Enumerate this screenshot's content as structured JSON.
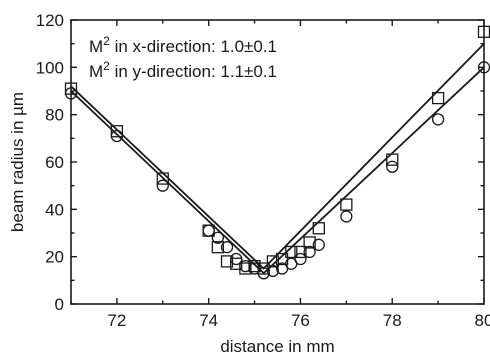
{
  "chart_data": {
    "type": "scatter",
    "xlabel": "distance in mm",
    "ylabel": "beam radius in µm",
    "xlim": [
      71,
      80
    ],
    "ylim": [
      0,
      120
    ],
    "x_ticks": [
      72,
      74,
      76,
      78,
      80
    ],
    "y_ticks": [
      0,
      20,
      40,
      60,
      80,
      100,
      120
    ],
    "grid": false,
    "annotations": [
      {
        "prefix": "M",
        "superscript": "2",
        "text": " in x-direction: 1.0±0.1"
      },
      {
        "prefix": "M",
        "superscript": "2",
        "text": " in y-direction: 1.1±0.1"
      }
    ],
    "series": [
      {
        "marker": "square",
        "x": [
          71,
          72,
          73,
          74,
          74.2,
          74.4,
          74.6,
          74.8,
          75,
          75.2,
          75.4,
          75.6,
          75.8,
          76,
          76.2,
          76.4,
          77,
          78,
          79,
          80
        ],
        "y": [
          91,
          73,
          53,
          31,
          24,
          18,
          17,
          15,
          16,
          15,
          18,
          19,
          22,
          22,
          26,
          32,
          42,
          61,
          87,
          115
        ],
        "fit": [
          [
            71,
            92
          ],
          [
            75.2,
            15
          ],
          [
            80,
            110
          ]
        ]
      },
      {
        "marker": "circle",
        "x": [
          71,
          72,
          73,
          74,
          74.2,
          74.4,
          74.6,
          74.8,
          75,
          75.2,
          75.4,
          75.6,
          75.8,
          76,
          76.2,
          76.4,
          77,
          78,
          79,
          80
        ],
        "y": [
          89,
          71,
          50,
          31,
          28,
          24,
          19,
          16,
          15,
          13,
          14,
          15,
          17,
          19,
          22,
          25,
          37,
          58,
          78,
          100
        ],
        "fit": [
          [
            71,
            90
          ],
          [
            75.2,
            13
          ],
          [
            80,
            100
          ]
        ]
      }
    ]
  }
}
